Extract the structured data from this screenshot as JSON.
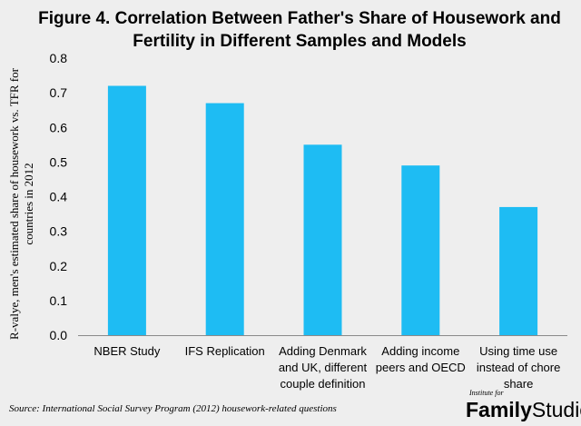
{
  "chart_data": {
    "type": "bar",
    "title": "Figure 4. Correlation Between Father's Share of Housework and\nFertility in Different Samples and Models",
    "ylabel": "R-valye, men's estimated share of housework vs. TFR for\ncountries in 2012",
    "xlabel": "",
    "categories": [
      "NBER Study",
      "IFS Replication",
      "Adding Denmark and UK, different couple definition",
      "Adding income peers and OECD",
      "Using time use instead of chore share"
    ],
    "category_lines": [
      [
        "NBER Study"
      ],
      [
        "IFS Replication"
      ],
      [
        "Adding Denmark",
        "and UK, different",
        "couple definition"
      ],
      [
        "Adding income",
        "peers and OECD"
      ],
      [
        "Using time use",
        "instead of chore",
        "share"
      ]
    ],
    "values": [
      0.72,
      0.67,
      0.55,
      0.49,
      0.37
    ],
    "ylim": [
      0,
      0.8
    ],
    "yticks": [
      "0.0",
      "0.1",
      "0.2",
      "0.3",
      "0.4",
      "0.5",
      "0.6",
      "0.7",
      "0.8"
    ],
    "grid": false,
    "bar_color": "#1ebcf3"
  },
  "source": "Source: International Social Survey Program (2012) housework-related questions",
  "logo": {
    "small": "Institute for",
    "word1": "Family",
    "word2": "Studies"
  }
}
